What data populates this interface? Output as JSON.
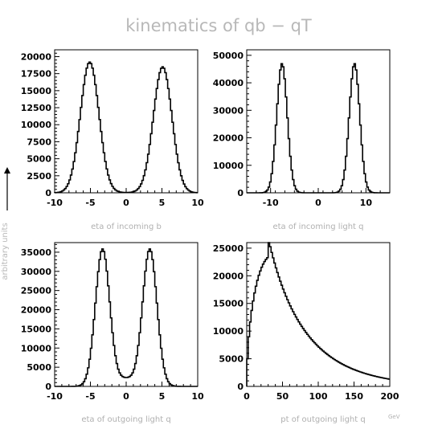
{
  "figure": {
    "title": "kinematics of qb − qT",
    "yaxis_label": "arbitrary units"
  },
  "chart_data": [
    {
      "type": "histogram",
      "xlabel": "eta of incoming b",
      "xlim": [
        -10,
        10
      ],
      "ylim": [
        0,
        21000
      ],
      "xticks": [
        -10,
        -5,
        0,
        5,
        10
      ],
      "yticks": [
        0,
        2500,
        5000,
        7500,
        10000,
        12500,
        15000,
        17500,
        20000
      ],
      "shape": "double_peak",
      "peaks": [
        {
          "center": -5.1,
          "height": 19200,
          "sigma": 1.3
        },
        {
          "center": 5.1,
          "height": 18500,
          "sigma": 1.3
        }
      ],
      "minimum": {
        "x": 0,
        "y": 30
      }
    },
    {
      "type": "histogram",
      "xlabel": "eta of incoming light q",
      "xlim": [
        -15,
        15
      ],
      "ylim": [
        0,
        52000
      ],
      "xticks": [
        -10,
        0,
        10
      ],
      "yticks": [
        0,
        10000,
        20000,
        30000,
        40000,
        50000
      ],
      "shape": "double_peak",
      "peaks": [
        {
          "center": -7.6,
          "height": 47000,
          "sigma": 1.1
        },
        {
          "center": 7.6,
          "height": 47000,
          "sigma": 1.1
        }
      ],
      "minimum": {
        "x": 0,
        "y": 0
      }
    },
    {
      "type": "histogram",
      "xlabel": "eta of outgoing light q",
      "xlim": [
        -10,
        10
      ],
      "ylim": [
        0,
        37500
      ],
      "xticks": [
        -10,
        -5,
        0,
        5,
        10
      ],
      "yticks": [
        0,
        5000,
        10000,
        15000,
        20000,
        25000,
        30000,
        35000
      ],
      "shape": "double_peak",
      "peaks": [
        {
          "center": -3.3,
          "height": 35800,
          "sigma": 1.0
        },
        {
          "center": 3.3,
          "height": 35800,
          "sigma": 1.0
        }
      ],
      "minimum": {
        "x": 0,
        "y": 2000
      }
    },
    {
      "type": "histogram",
      "xlabel": "pt of outgoing light q",
      "xunit": "GeV",
      "xlim": [
        0,
        200
      ],
      "ylim": [
        0,
        26000
      ],
      "xticks": [
        0,
        50,
        100,
        150,
        200
      ],
      "yticks": [
        0,
        5000,
        10000,
        15000,
        20000,
        25000
      ],
      "shape": "skewed",
      "peak": {
        "x": 30,
        "y": 23400
      },
      "tail": {
        "x": 200,
        "y": 1300
      }
    }
  ]
}
